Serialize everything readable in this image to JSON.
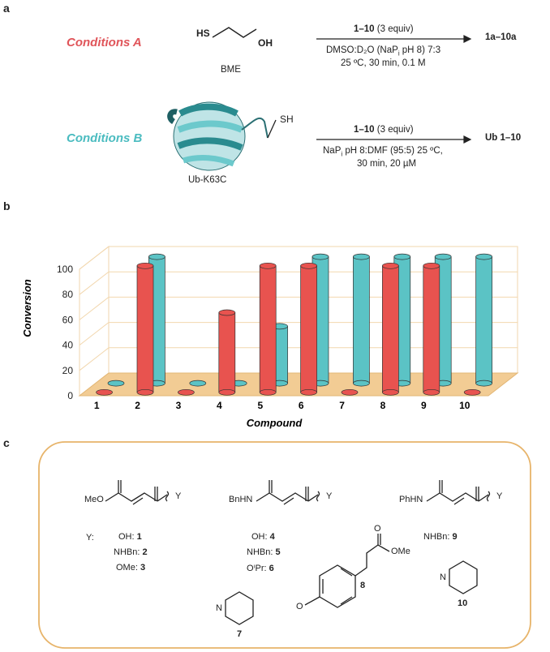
{
  "panel_a": {
    "letter": "a",
    "conditions_a": "Conditions A",
    "conditions_b": "Conditions B",
    "colors": {
      "a": "#e0555a",
      "b": "#4bbcc0"
    },
    "bme_label": "BME",
    "bme_hs": "HS",
    "bme_oh": "OH",
    "reagent_a": "1–10",
    "reagent_a_suffix": "(3 equiv)",
    "cond_a_line1": "DMSO:D₂O (NaP",
    "cond_a_line1_sub": "i",
    "cond_a_line1_end": " pH 8) 7:3",
    "cond_a_line2": "25 ºC, 30 min, 0.1 M",
    "product_a": "1a–10a",
    "protein_label": "Ub-K63C",
    "protein_sh": "SH",
    "reagent_b": "1–10",
    "reagent_b_suffix": "(3 equiv)",
    "cond_b_line1": "NaP",
    "cond_b_line1_sub": "i",
    "cond_b_line1_end": " pH 8:DMF (95:5) 25 ºC,",
    "cond_b_line2": "30 min, 20 µM",
    "product_b": "Ub 1–10"
  },
  "panel_b": {
    "letter": "b"
  },
  "chart_data": {
    "type": "bar",
    "xlabel": "Compound",
    "ylabel": "Conversion",
    "categories": [
      "1",
      "2",
      "3",
      "4",
      "5",
      "6",
      "7",
      "8",
      "9",
      "10"
    ],
    "yticks": [
      "0",
      "20",
      "40",
      "60",
      "80",
      "100"
    ],
    "ylim": [
      0,
      100
    ],
    "series": [
      {
        "color": "#e8534f",
        "values": [
          0,
          100,
          0,
          63,
          100,
          100,
          0,
          100,
          100,
          0
        ]
      },
      {
        "color": "#5bc3c5",
        "values": [
          0,
          100,
          0,
          0,
          45,
          100,
          100,
          100,
          100,
          100
        ]
      }
    ],
    "floor_color": "#f2cc94",
    "grid": true
  },
  "panel_c": {
    "letter": "c",
    "box_color": "#e7b46a",
    "s1_meo": "MeO",
    "s1_y": "Y",
    "y_label": "Y:",
    "s1_items": [
      {
        "label": "OH: ",
        "num": "1"
      },
      {
        "label": "NHBn: ",
        "num": "2"
      },
      {
        "label": "OMe: ",
        "num": "3"
      }
    ],
    "s2_bnhn": "BnHN",
    "s2_y": "Y",
    "s2_items": [
      {
        "label": "OH: ",
        "num": "4"
      },
      {
        "label": "NHBn: ",
        "num": "5"
      },
      {
        "label": "OⁱPr: ",
        "num": "6"
      }
    ],
    "s3_phhn": "PhHN",
    "s3_y": "Y",
    "s3_items": [
      {
        "label": "NHBn: ",
        "num": "9"
      }
    ],
    "pip_n": "N",
    "num_7": "7",
    "num_8": "8",
    "num_10": "10",
    "ome_label": "OMe",
    "o_label": "O"
  }
}
